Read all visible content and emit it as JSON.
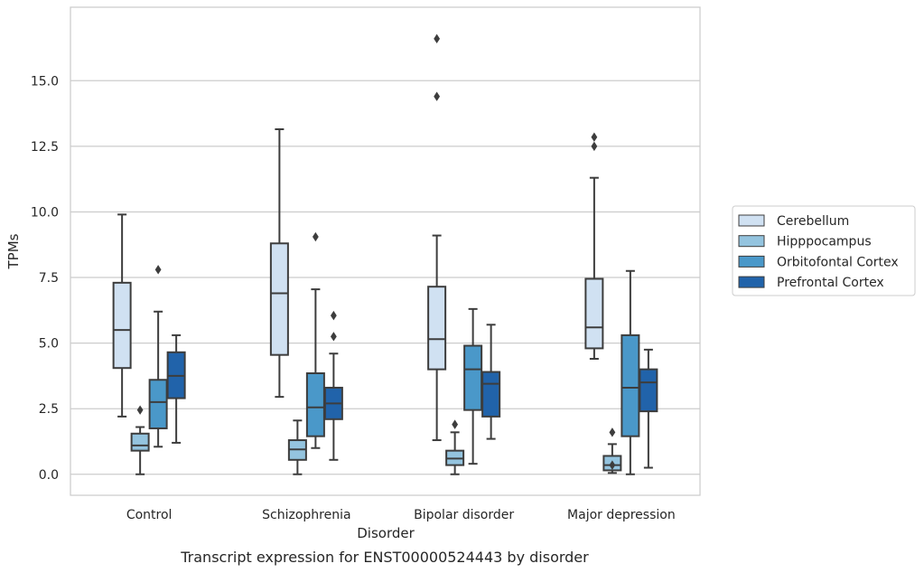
{
  "caption": "Transcript expression for ENST00000524443 by disorder",
  "chart_data": {
    "type": "box",
    "xlabel": "Disorder",
    "ylabel": "TPMs",
    "ylim": [
      -0.8,
      17.8
    ],
    "yticks": [
      0.0,
      2.5,
      5.0,
      7.5,
      10.0,
      12.5,
      15.0
    ],
    "ytick_labels": [
      "0.0",
      "2.5",
      "5.0",
      "7.5",
      "10.0",
      "12.5",
      "15.0"
    ],
    "grid": "horizontal",
    "legend_position": "right",
    "categories": [
      "Control",
      "Schizophrenia",
      "Bipolar disorder",
      "Major depression"
    ],
    "series": [
      {
        "name": "Cerebellum",
        "color": "#d0e1f2",
        "boxes": [
          {
            "category": "Control",
            "whislo": 2.2,
            "q1": 4.05,
            "med": 5.5,
            "q3": 7.3,
            "whishi": 9.9,
            "fliers": []
          },
          {
            "category": "Schizophrenia",
            "whislo": 2.95,
            "q1": 4.55,
            "med": 6.9,
            "q3": 8.8,
            "whishi": 13.15,
            "fliers": []
          },
          {
            "category": "Bipolar disorder",
            "whislo": 1.3,
            "q1": 4.0,
            "med": 5.15,
            "q3": 7.15,
            "whishi": 9.1,
            "fliers": [
              14.4,
              16.6
            ]
          },
          {
            "category": "Major depression",
            "whislo": 4.4,
            "q1": 4.8,
            "med": 5.6,
            "q3": 7.45,
            "whishi": 11.3,
            "fliers": [
              12.5,
              12.85
            ]
          }
        ]
      },
      {
        "name": "Hipppocampus",
        "color": "#94c4df",
        "boxes": [
          {
            "category": "Control",
            "whislo": 0.0,
            "q1": 0.9,
            "med": 1.1,
            "q3": 1.55,
            "whishi": 1.8,
            "fliers": [
              2.45
            ]
          },
          {
            "category": "Schizophrenia",
            "whislo": 0.0,
            "q1": 0.55,
            "med": 0.95,
            "q3": 1.3,
            "whishi": 2.05,
            "fliers": []
          },
          {
            "category": "Bipolar disorder",
            "whislo": 0.0,
            "q1": 0.35,
            "med": 0.6,
            "q3": 0.9,
            "whishi": 1.6,
            "fliers": [
              1.9
            ]
          },
          {
            "category": "Major depression",
            "whislo": 0.05,
            "q1": 0.15,
            "med": 0.35,
            "q3": 0.7,
            "whishi": 1.15,
            "fliers": [
              0.35,
              1.6
            ]
          }
        ]
      },
      {
        "name": "Orbitofontal Cortex",
        "color": "#4a98c9",
        "boxes": [
          {
            "category": "Control",
            "whislo": 1.05,
            "q1": 1.75,
            "med": 2.75,
            "q3": 3.6,
            "whishi": 6.2,
            "fliers": [
              7.8
            ]
          },
          {
            "category": "Schizophrenia",
            "whislo": 1.0,
            "q1": 1.45,
            "med": 2.55,
            "q3": 3.85,
            "whishi": 7.05,
            "fliers": [
              9.05
            ]
          },
          {
            "category": "Bipolar disorder",
            "whislo": 0.4,
            "q1": 2.45,
            "med": 4.0,
            "q3": 4.9,
            "whishi": 6.3,
            "fliers": []
          },
          {
            "category": "Major depression",
            "whislo": 0.0,
            "q1": 1.45,
            "med": 3.3,
            "q3": 5.3,
            "whishi": 7.75,
            "fliers": []
          }
        ]
      },
      {
        "name": "Prefrontal Cortex",
        "color": "#2163aa",
        "boxes": [
          {
            "category": "Control",
            "whislo": 1.2,
            "q1": 2.9,
            "med": 3.75,
            "q3": 4.65,
            "whishi": 5.3,
            "fliers": []
          },
          {
            "category": "Schizophrenia",
            "whislo": 0.55,
            "q1": 2.1,
            "med": 2.7,
            "q3": 3.3,
            "whishi": 4.6,
            "fliers": [
              5.25,
              6.05
            ]
          },
          {
            "category": "Bipolar disorder",
            "whislo": 1.35,
            "q1": 2.2,
            "med": 3.45,
            "q3": 3.9,
            "whishi": 5.7,
            "fliers": []
          },
          {
            "category": "Major depression",
            "whislo": 0.25,
            "q1": 2.4,
            "med": 3.5,
            "q3": 4.0,
            "whishi": 4.75,
            "fliers": []
          }
        ]
      }
    ]
  }
}
